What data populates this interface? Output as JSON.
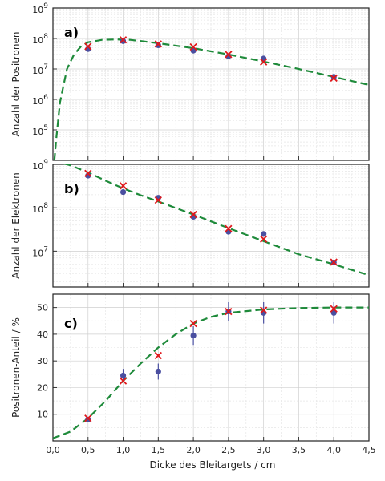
{
  "figure": {
    "xlabel": "Dicke des Bleitargets / cm",
    "x_tick_labels": [
      "0,0",
      "0,5",
      "1,0",
      "1,5",
      "2,0",
      "2,5",
      "3,0",
      "3,5",
      "4,0",
      "4,5"
    ]
  },
  "colors": {
    "circle": "#4a4fa0",
    "cross": "#e0181c",
    "curve": "#1e8a3a"
  },
  "chart_data": [
    {
      "type": "scatter",
      "panel_label": "a)",
      "ylabel": "Anzahl der Positronen",
      "xlim": [
        0,
        4.5
      ],
      "ylim": [
        10000.0,
        1000000000.0
      ],
      "yscale": "log",
      "y_tick_labels": [
        {
          "exp": "5",
          "value": 100000.0
        },
        {
          "exp": "6",
          "value": 1000000.0
        },
        {
          "exp": "7",
          "value": 10000000.0
        },
        {
          "exp": "8",
          "value": 100000000.0
        },
        {
          "exp": "9",
          "value": 1000000000.0
        }
      ],
      "grid": true,
      "series": [
        {
          "marker": "circle",
          "x": [
            0.5,
            1.0,
            1.5,
            2.0,
            2.5,
            3.0,
            4.0
          ],
          "y": [
            45000000.0,
            82000000.0,
            60000000.0,
            40000000.0,
            26000000.0,
            22000000.0,
            5500000.0
          ]
        },
        {
          "marker": "cross",
          "x": [
            0.5,
            1.0,
            1.5,
            2.0,
            2.5,
            3.0,
            4.0
          ],
          "y": [
            55000000.0,
            90000000.0,
            66000000.0,
            53000000.0,
            30000000.0,
            17000000.0,
            5000000.0
          ]
        },
        {
          "marker": "dashed-line",
          "x": [
            0.02,
            0.05,
            0.1,
            0.2,
            0.3,
            0.4,
            0.5,
            0.7,
            0.9,
            1.1,
            1.3,
            1.5,
            2.0,
            2.5,
            3.0,
            3.5,
            4.0,
            4.5
          ],
          "y": [
            10000.0,
            60000.0,
            800000.0,
            10000000.0,
            30000000.0,
            55000000.0,
            75000000.0,
            90000000.0,
            93000000.0,
            90000000.0,
            80000000.0,
            70000000.0,
            48000000.0,
            30000000.0,
            17500000.0,
            10000000.0,
            5500000.0,
            3000000.0
          ]
        }
      ]
    },
    {
      "type": "scatter",
      "panel_label": "b)",
      "ylabel": "Anzahl der Elektronen",
      "xlim": [
        0,
        4.5
      ],
      "ylim": [
        1500000.0,
        1000000000.0
      ],
      "yscale": "log",
      "y_tick_labels": [
        {
          "exp": "7",
          "value": 10000000.0
        },
        {
          "exp": "8",
          "value": 100000000.0
        },
        {
          "exp": "9",
          "value": 1000000000.0
        }
      ],
      "grid": true,
      "series": [
        {
          "marker": "circle",
          "x": [
            0.5,
            1.0,
            1.5,
            2.0,
            2.5,
            3.0,
            4.0
          ],
          "y": [
            550000000.0,
            230000000.0,
            170000000.0,
            62000000.0,
            28000000.0,
            25000000.0,
            5500000.0
          ]
        },
        {
          "marker": "cross",
          "x": [
            0.5,
            1.0,
            1.5,
            2.0,
            2.5,
            3.0,
            4.0
          ],
          "y": [
            620000000.0,
            320000000.0,
            150000000.0,
            70000000.0,
            33000000.0,
            19000000.0,
            5600000.0
          ]
        },
        {
          "marker": "dashed-line",
          "x": [
            0.0,
            0.25,
            0.5,
            0.75,
            1.0,
            1.25,
            1.5,
            2.0,
            2.5,
            3.0,
            3.5,
            4.0,
            4.5
          ],
          "y": [
            1200000000.0,
            950000000.0,
            650000000.0,
            420000000.0,
            280000000.0,
            195000000.0,
            140000000.0,
            70000000.0,
            34000000.0,
            17000000.0,
            8500000.0,
            5000000.0,
            2800000.0
          ]
        }
      ]
    },
    {
      "type": "scatter",
      "panel_label": "c)",
      "ylabel": "Positronen-Anteil / %",
      "xlim": [
        0,
        4.5
      ],
      "ylim": [
        0,
        55
      ],
      "yscale": "linear",
      "y_tick_labels": [
        {
          "text": "10",
          "value": 10
        },
        {
          "text": "20",
          "value": 20
        },
        {
          "text": "30",
          "value": 30
        },
        {
          "text": "40",
          "value": 40
        },
        {
          "text": "50",
          "value": 50
        }
      ],
      "grid": true,
      "series": [
        {
          "marker": "circle",
          "x": [
            0.5,
            1.0,
            1.5,
            2.0,
            2.5,
            3.0,
            4.0
          ],
          "y": [
            8.0,
            24.5,
            26.0,
            39.5,
            48.5,
            48.0,
            48.0
          ],
          "err": [
            1.0,
            2.5,
            3.0,
            3.5,
            3.5,
            4.0,
            4.0
          ]
        },
        {
          "marker": "cross",
          "x": [
            0.5,
            1.0,
            1.5,
            2.0,
            2.5,
            3.0,
            4.0
          ],
          "y": [
            8.5,
            22.5,
            32.0,
            44.0,
            48.5,
            49.0,
            49.5
          ]
        },
        {
          "marker": "dashed-line",
          "x": [
            0.0,
            0.25,
            0.5,
            0.75,
            1.0,
            1.25,
            1.5,
            1.75,
            2.0,
            2.25,
            2.5,
            3.0,
            3.5,
            4.0,
            4.5
          ],
          "y": [
            1.0,
            3.5,
            8.5,
            15.0,
            22.5,
            29.0,
            35.0,
            40.0,
            44.0,
            46.5,
            48.0,
            49.3,
            49.8,
            50.0,
            50.0
          ]
        }
      ]
    }
  ]
}
